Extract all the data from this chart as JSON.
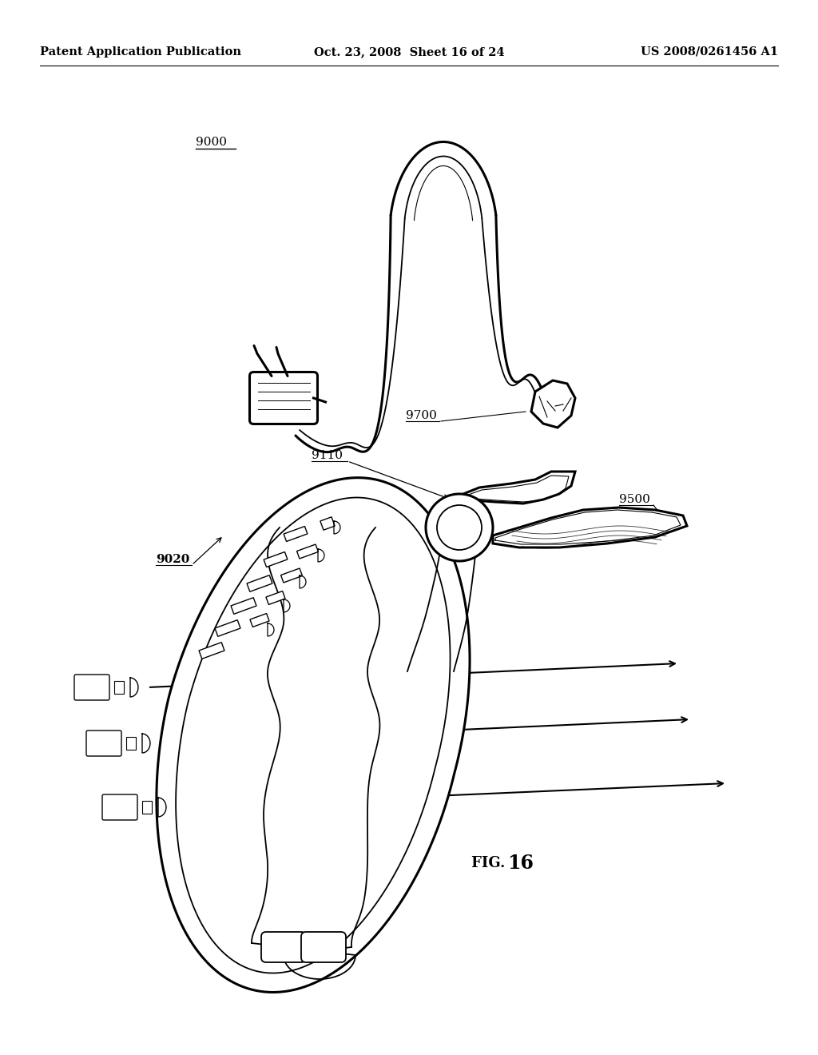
{
  "title_left": "Patent Application Publication",
  "title_center": "Oct. 23, 2008  Sheet 16 of 24",
  "title_right": "US 2008/0261456 A1",
  "bg_color": "#ffffff",
  "line_color": "#000000",
  "font_size_header": 10.5,
  "font_size_label": 11,
  "font_size_fig": 13
}
